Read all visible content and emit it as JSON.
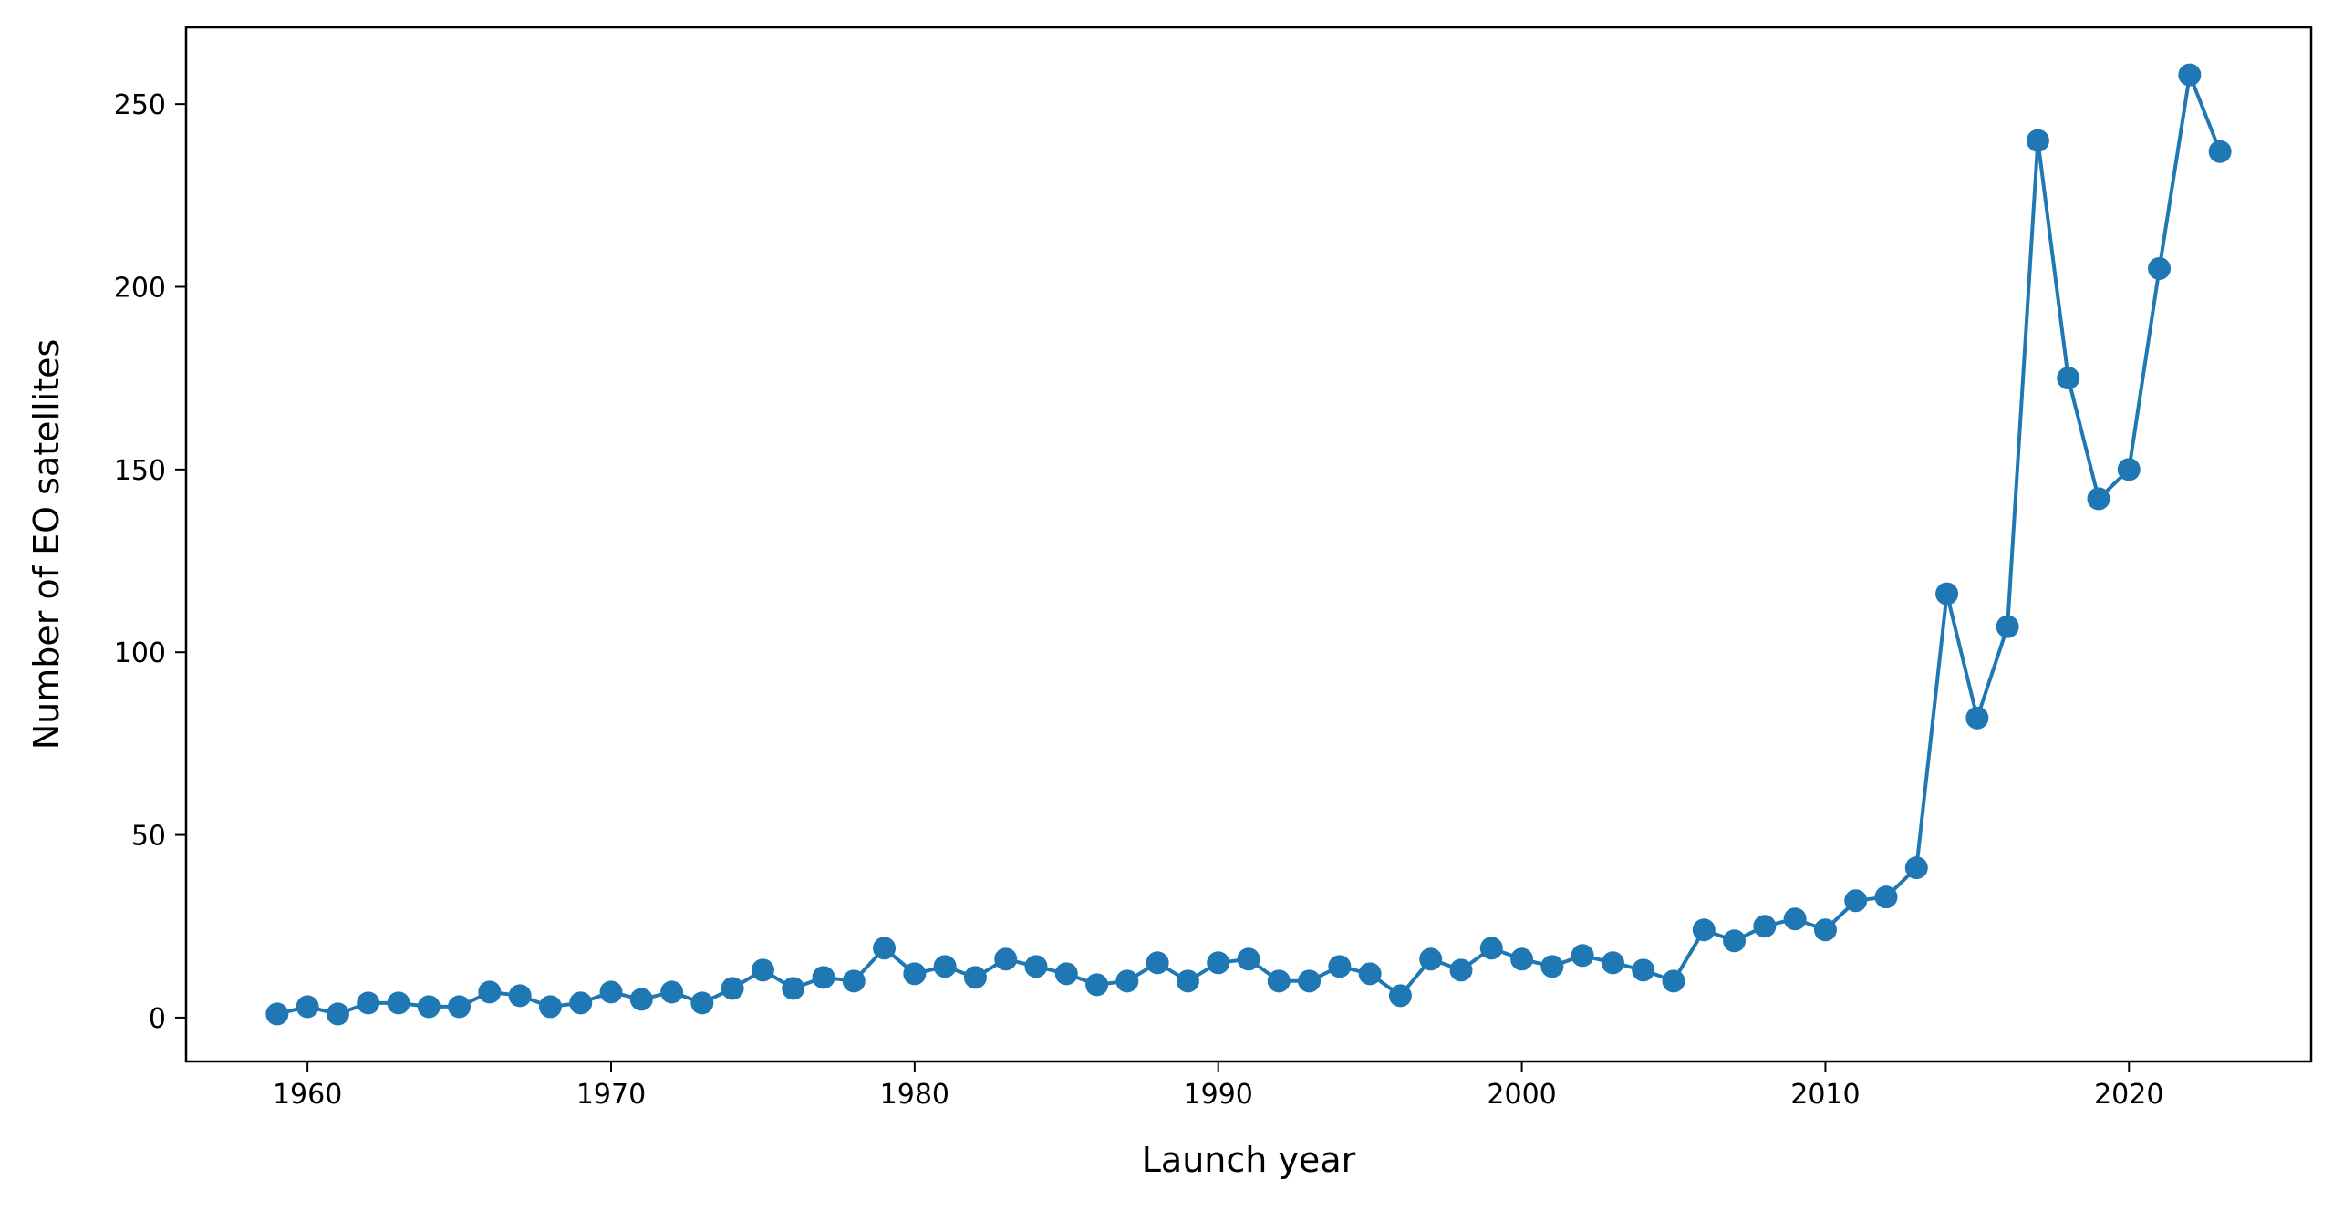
{
  "chart_data": {
    "type": "line",
    "title": "",
    "xlabel": "Launch year",
    "ylabel": "Number of EO satellites",
    "xlim": [
      1956,
      2026
    ],
    "ylim": [
      -12,
      271
    ],
    "xticks": [
      1960,
      1970,
      1980,
      1990,
      2000,
      2010,
      2020
    ],
    "yticks": [
      0,
      50,
      100,
      150,
      200,
      250
    ],
    "grid": false,
    "legend": "none",
    "markers": true,
    "color": "#1f77b4",
    "series": [
      {
        "x": [
          1959,
          1960,
          1961,
          1962,
          1963,
          1964,
          1965,
          1966,
          1967,
          1968,
          1969,
          1970,
          1971,
          1972,
          1973,
          1974,
          1975,
          1976,
          1977,
          1978,
          1979,
          1980,
          1981,
          1982,
          1983,
          1984,
          1985,
          1986,
          1987,
          1988,
          1989,
          1990,
          1991,
          1992,
          1993,
          1994,
          1995,
          1996,
          1997,
          1998,
          1999,
          2000,
          2001,
          2002,
          2003,
          2004,
          2005,
          2006,
          2007,
          2008,
          2009,
          2010,
          2011,
          2012,
          2013,
          2014,
          2015,
          2016,
          2017,
          2018,
          2019,
          2020,
          2021,
          2022,
          2023
        ],
        "y": [
          1,
          3,
          1,
          4,
          4,
          3,
          3,
          7,
          6,
          3,
          4,
          7,
          5,
          7,
          4,
          8,
          13,
          8,
          11,
          10,
          19,
          12,
          14,
          11,
          16,
          14,
          12,
          9,
          10,
          15,
          10,
          15,
          16,
          10,
          10,
          14,
          12,
          6,
          16,
          13,
          19,
          16,
          14,
          17,
          15,
          13,
          10,
          24,
          21,
          25,
          27,
          24,
          32,
          33,
          41,
          116,
          82,
          107,
          240,
          175,
          142,
          150,
          205,
          258,
          237
        ]
      }
    ]
  }
}
